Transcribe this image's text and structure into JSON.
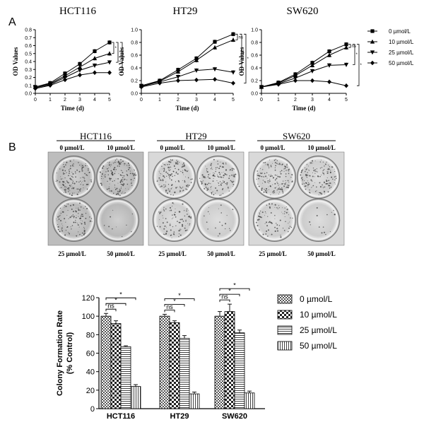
{
  "panel_labels": {
    "a": "A",
    "b": "B"
  },
  "line_titles": [
    "HCT116",
    "HT29",
    "SW620"
  ],
  "line_axes": {
    "xlabel": "Time (d)",
    "ylabel": "OD Values"
  },
  "line_legend": [
    "0 µmol/L",
    "10 µmol/L",
    "25 µmol/L",
    "50 µmol/L"
  ],
  "line_sig": {
    "hct116": [
      "*",
      "*",
      "*"
    ],
    "ht29": [
      "ns",
      "*",
      "*"
    ],
    "sw620": [
      "ns",
      "*",
      "*"
    ]
  },
  "colony_titles": [
    "HCT116",
    "HT29",
    "SW620"
  ],
  "colony_dose_labels": {
    "top_left": "0 µmol/L",
    "top_right": "10 µmol/L",
    "bottom_left": "25 µmol/L",
    "bottom_right": "50 µmol/L"
  },
  "bar_legend": [
    "0 µmol/L",
    "10 µmol/L",
    "25 µmol/L",
    "50 µmol/L"
  ],
  "bar_sig": [
    "ns",
    "*",
    "*"
  ],
  "chart_data": [
    {
      "type": "line",
      "title": "HCT116",
      "xlabel": "Time (d)",
      "ylabel": "OD Values",
      "x": [
        0,
        1,
        2,
        3,
        4,
        5
      ],
      "xlim": [
        0,
        5
      ],
      "ylim": [
        0,
        0.8
      ],
      "yticks": [
        0,
        0.1,
        0.2,
        0.3,
        0.4,
        0.5,
        0.6,
        0.7,
        0.8
      ],
      "series": [
        {
          "name": "0 µmol/L",
          "values": [
            0.08,
            0.13,
            0.25,
            0.37,
            0.53,
            0.64
          ]
        },
        {
          "name": "10 µmol/L",
          "values": [
            0.08,
            0.12,
            0.22,
            0.33,
            0.44,
            0.5
          ]
        },
        {
          "name": "25 µmol/L",
          "values": [
            0.07,
            0.11,
            0.2,
            0.29,
            0.35,
            0.39
          ]
        },
        {
          "name": "50 µmol/L",
          "values": [
            0.06,
            0.1,
            0.17,
            0.23,
            0.26,
            0.26
          ]
        }
      ]
    },
    {
      "type": "line",
      "title": "HT29",
      "xlabel": "Time (d)",
      "ylabel": "OD Values",
      "x": [
        0,
        1,
        2,
        3,
        4,
        5
      ],
      "xlim": [
        0,
        5
      ],
      "ylim": [
        0,
        1.0
      ],
      "yticks": [
        0,
        0.2,
        0.4,
        0.6,
        0.8,
        1.0
      ],
      "series": [
        {
          "name": "0 µmol/L",
          "values": [
            0.12,
            0.2,
            0.37,
            0.55,
            0.81,
            0.93
          ]
        },
        {
          "name": "10 µmol/L",
          "values": [
            0.12,
            0.19,
            0.34,
            0.52,
            0.72,
            0.84
          ]
        },
        {
          "name": "25 µmol/L",
          "values": [
            0.11,
            0.18,
            0.26,
            0.36,
            0.38,
            0.33
          ]
        },
        {
          "name": "50 µmol/L",
          "values": [
            0.1,
            0.16,
            0.2,
            0.21,
            0.22,
            0.16
          ]
        }
      ]
    },
    {
      "type": "line",
      "title": "SW620",
      "xlabel": "Time (d)",
      "ylabel": "OD Values",
      "x": [
        0,
        1,
        2,
        3,
        4,
        5
      ],
      "xlim": [
        0,
        5
      ],
      "ylim": [
        0,
        1.0
      ],
      "yticks": [
        0,
        0.2,
        0.4,
        0.6,
        0.8,
        1.0
      ],
      "series": [
        {
          "name": "0 µmol/L",
          "values": [
            0.1,
            0.17,
            0.3,
            0.48,
            0.66,
            0.77
          ]
        },
        {
          "name": "10 µmol/L",
          "values": [
            0.1,
            0.16,
            0.28,
            0.44,
            0.6,
            0.72
          ]
        },
        {
          "name": "25 µmol/L",
          "values": [
            0.1,
            0.15,
            0.24,
            0.35,
            0.44,
            0.45
          ]
        },
        {
          "name": "50 µmol/L",
          "values": [
            0.1,
            0.14,
            0.2,
            0.2,
            0.18,
            0.12
          ]
        }
      ]
    },
    {
      "type": "bar",
      "title": "",
      "xlabel": "",
      "ylabel": "Colony Formation Rate (% Control)",
      "categories": [
        "HCT116",
        "HT29",
        "SW620"
      ],
      "ylim": [
        0,
        120
      ],
      "yticks": [
        0,
        20,
        40,
        60,
        80,
        100,
        120
      ],
      "series": [
        {
          "name": "0 µmol/L",
          "values": [
            100,
            100,
            100
          ],
          "errors": [
            3,
            2,
            5
          ]
        },
        {
          "name": "10 µmol/L",
          "values": [
            92,
            93,
            105
          ],
          "errors": [
            3,
            2,
            8
          ]
        },
        {
          "name": "25 µmol/L",
          "values": [
            67,
            76,
            82
          ],
          "errors": [
            1,
            3,
            3
          ]
        },
        {
          "name": "50 µmol/L",
          "values": [
            24,
            16,
            17
          ],
          "errors": [
            2,
            2,
            2
          ]
        }
      ]
    }
  ]
}
